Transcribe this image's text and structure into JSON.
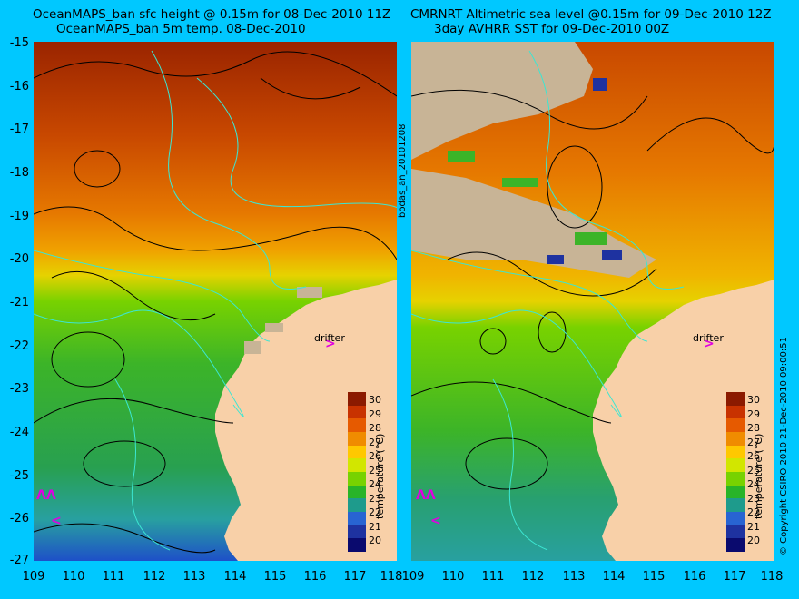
{
  "left_panel": {
    "title_line1": "OceanMAPS_ban sfc height @ 0.15m for 08-Dec-2010 11Z",
    "title_line2": "OceanMAPS_ban 5m temp. 08-Dec-2010",
    "side_label": "bodas_an_20101208",
    "drifter_label": "drifter",
    "colorbar_title": "temperature (°C)"
  },
  "right_panel": {
    "title_line1": "CMRNRT Altimetric sea level  @0.15m  for 09-Dec-2010 12Z",
    "title_line2": "3day AVHRR SST for 09-Dec-2010 00Z",
    "drifter_label": "drifter",
    "colorbar_title": "temperature (°C)"
  },
  "footer": {
    "copyright": "© Copyright CSIRO 2010   21-Dec-2010 09:00:51"
  },
  "axes": {
    "y_ticks": [
      "-15",
      "-16",
      "-17",
      "-18",
      "-19",
      "-20",
      "-21",
      "-22",
      "-23",
      "-24",
      "-25",
      "-26",
      "-27"
    ],
    "x_ticks": [
      "109",
      "110",
      "111",
      "112",
      "113",
      "114",
      "115",
      "116",
      "117",
      "118"
    ]
  },
  "colorbar": {
    "ticks": [
      "30",
      "29",
      "28",
      "27",
      "26",
      "25",
      "24",
      "23",
      "22",
      "21",
      "20"
    ],
    "colors": [
      "#8b1a00",
      "#c83200",
      "#e65a00",
      "#f08c00",
      "#ffc800",
      "#d2e600",
      "#78d200",
      "#28b428",
      "#1e9b8c",
      "#2864d2",
      "#1e32a0",
      "#0a0a6e"
    ]
  },
  "colors": {
    "background": "#00c8ff",
    "land": "#f8d0a8",
    "cloud": "#c8b496",
    "drifter": "#e000e0",
    "contour_ssh": "#000000",
    "contour_bathy": "#3ce6d2"
  }
}
